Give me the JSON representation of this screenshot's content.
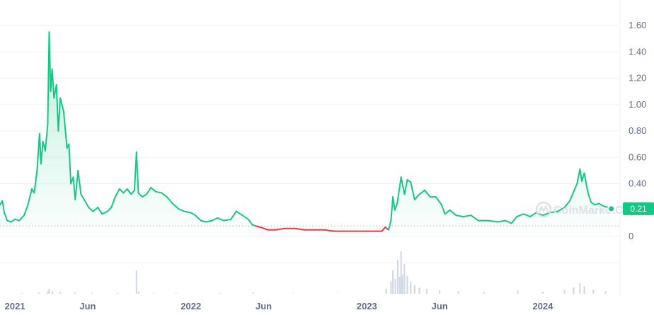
{
  "watermark": "CoinMarketCap",
  "colors": {
    "up": "#16c784",
    "down": "#ea3943",
    "volume": "#cfd6e4",
    "grid": "#eff2f5",
    "baseline": "#a6b0c3"
  },
  "chart_data": {
    "type": "line",
    "title": "",
    "xlabel": "",
    "ylabel": "",
    "y_ticks": [
      "1.60",
      "1.40",
      "1.20",
      "1.00",
      "0.80",
      "0.60",
      "0.40",
      "0.21",
      "0"
    ],
    "y_tick_values": [
      1.6,
      1.4,
      1.2,
      1.0,
      0.8,
      0.6,
      0.4,
      0.0
    ],
    "ylim": [
      0,
      1.6
    ],
    "x_ticks": [
      "2021",
      "Jun",
      "2022",
      "Jun",
      "2023",
      "Jun",
      "2024"
    ],
    "x_tick_dates": [
      "2021-01-01",
      "2021-06-01",
      "2022-01-01",
      "2022-06-01",
      "2023-01-01",
      "2023-06-01",
      "2024-01-01"
    ],
    "x_range": [
      "2020-12-01",
      "2024-06-15"
    ],
    "current_price": "0.21",
    "reference_price": 0.08,
    "grid": true,
    "series": [
      {
        "type": "price",
        "points": [
          [
            "2020-12-01",
            0.24
          ],
          [
            "2020-12-06",
            0.27
          ],
          [
            "2020-12-10",
            0.18
          ],
          [
            "2020-12-16",
            0.12
          ],
          [
            "2020-12-24",
            0.11
          ],
          [
            "2021-01-01",
            0.13
          ],
          [
            "2021-01-10",
            0.12
          ],
          [
            "2021-01-20",
            0.16
          ],
          [
            "2021-01-28",
            0.24
          ],
          [
            "2021-02-05",
            0.36
          ],
          [
            "2021-02-10",
            0.33
          ],
          [
            "2021-02-16",
            0.5
          ],
          [
            "2021-02-21",
            0.78
          ],
          [
            "2021-02-24",
            0.55
          ],
          [
            "2021-02-28",
            0.72
          ],
          [
            "2021-03-05",
            0.65
          ],
          [
            "2021-03-10",
            0.85
          ],
          [
            "2021-03-13",
            1.55
          ],
          [
            "2021-03-16",
            1.1
          ],
          [
            "2021-03-19",
            1.27
          ],
          [
            "2021-03-23",
            1.05
          ],
          [
            "2021-03-28",
            1.15
          ],
          [
            "2021-04-01",
            0.8
          ],
          [
            "2021-04-05",
            1.05
          ],
          [
            "2021-04-12",
            0.95
          ],
          [
            "2021-04-19",
            0.67
          ],
          [
            "2021-04-23",
            0.7
          ],
          [
            "2021-04-27",
            0.4
          ],
          [
            "2021-05-02",
            0.45
          ],
          [
            "2021-05-06",
            0.28
          ],
          [
            "2021-05-12",
            0.5
          ],
          [
            "2021-05-18",
            0.32
          ],
          [
            "2021-05-26",
            0.27
          ],
          [
            "2021-06-03",
            0.22
          ],
          [
            "2021-06-12",
            0.19
          ],
          [
            "2021-06-22",
            0.22
          ],
          [
            "2021-07-01",
            0.17
          ],
          [
            "2021-07-12",
            0.19
          ],
          [
            "2021-07-20",
            0.22
          ],
          [
            "2021-07-28",
            0.3
          ],
          [
            "2021-08-06",
            0.36
          ],
          [
            "2021-08-14",
            0.33
          ],
          [
            "2021-08-22",
            0.36
          ],
          [
            "2021-08-30",
            0.32
          ],
          [
            "2021-09-06",
            0.35
          ],
          [
            "2021-09-10",
            0.64
          ],
          [
            "2021-09-14",
            0.33
          ],
          [
            "2021-09-22",
            0.3
          ],
          [
            "2021-10-01",
            0.32
          ],
          [
            "2021-10-10",
            0.37
          ],
          [
            "2021-10-20",
            0.34
          ],
          [
            "2021-11-01",
            0.33
          ],
          [
            "2021-11-12",
            0.3
          ],
          [
            "2021-11-24",
            0.25
          ],
          [
            "2021-12-06",
            0.21
          ],
          [
            "2021-12-18",
            0.19
          ],
          [
            "2022-01-01",
            0.18
          ],
          [
            "2022-01-10",
            0.16
          ],
          [
            "2022-01-22",
            0.12
          ],
          [
            "2022-02-01",
            0.11
          ],
          [
            "2022-02-14",
            0.12
          ],
          [
            "2022-02-25",
            0.14
          ],
          [
            "2022-03-10",
            0.12
          ],
          [
            "2022-03-25",
            0.13
          ],
          [
            "2022-04-05",
            0.19
          ],
          [
            "2022-04-18",
            0.16
          ],
          [
            "2022-04-30",
            0.13
          ],
          [
            "2022-05-08",
            0.09
          ],
          [
            "2022-05-15",
            0.08
          ],
          [
            "2022-05-25",
            0.07
          ],
          [
            "2022-06-10",
            0.05
          ],
          [
            "2022-06-25",
            0.05
          ],
          [
            "2022-07-15",
            0.06
          ],
          [
            "2022-08-05",
            0.06
          ],
          [
            "2022-08-25",
            0.05
          ],
          [
            "2022-09-15",
            0.05
          ],
          [
            "2022-10-05",
            0.05
          ],
          [
            "2022-10-25",
            0.04
          ],
          [
            "2022-11-15",
            0.04
          ],
          [
            "2022-12-05",
            0.04
          ],
          [
            "2022-12-25",
            0.04
          ],
          [
            "2023-01-15",
            0.04
          ],
          [
            "2023-02-01",
            0.04
          ],
          [
            "2023-02-08",
            0.07
          ],
          [
            "2023-02-15",
            0.05
          ],
          [
            "2023-02-20",
            0.12
          ],
          [
            "2023-02-24",
            0.3
          ],
          [
            "2023-02-28",
            0.2
          ],
          [
            "2023-03-05",
            0.25
          ],
          [
            "2023-03-13",
            0.45
          ],
          [
            "2023-03-20",
            0.32
          ],
          [
            "2023-03-26",
            0.43
          ],
          [
            "2023-04-02",
            0.41
          ],
          [
            "2023-04-10",
            0.28
          ],
          [
            "2023-04-20",
            0.32
          ],
          [
            "2023-05-01",
            0.35
          ],
          [
            "2023-05-12",
            0.3
          ],
          [
            "2023-05-24",
            0.3
          ],
          [
            "2023-06-05",
            0.24
          ],
          [
            "2023-06-12",
            0.17
          ],
          [
            "2023-06-22",
            0.2
          ],
          [
            "2023-07-05",
            0.16
          ],
          [
            "2023-07-20",
            0.15
          ],
          [
            "2023-08-05",
            0.16
          ],
          [
            "2023-08-20",
            0.12
          ],
          [
            "2023-09-10",
            0.12
          ],
          [
            "2023-09-30",
            0.11
          ],
          [
            "2023-10-15",
            0.12
          ],
          [
            "2023-10-28",
            0.1
          ],
          [
            "2023-11-08",
            0.15
          ],
          [
            "2023-11-22",
            0.17
          ],
          [
            "2023-12-06",
            0.15
          ],
          [
            "2023-12-18",
            0.18
          ],
          [
            "2024-01-01",
            0.16
          ],
          [
            "2024-01-15",
            0.18
          ],
          [
            "2024-02-01",
            0.19
          ],
          [
            "2024-02-15",
            0.22
          ],
          [
            "2024-02-26",
            0.27
          ],
          [
            "2024-03-05",
            0.34
          ],
          [
            "2024-03-12",
            0.4
          ],
          [
            "2024-03-18",
            0.51
          ],
          [
            "2024-03-22",
            0.42
          ],
          [
            "2024-03-27",
            0.48
          ],
          [
            "2024-04-03",
            0.34
          ],
          [
            "2024-04-10",
            0.26
          ],
          [
            "2024-04-18",
            0.24
          ],
          [
            "2024-04-26",
            0.25
          ],
          [
            "2024-05-06",
            0.23
          ],
          [
            "2024-05-15",
            0.22
          ],
          [
            "2024-05-22",
            0.21
          ]
        ]
      }
    ],
    "volume": {
      "ymax": 1.0,
      "points": [
        [
          "2021-01-15",
          0.02
        ],
        [
          "2021-02-20",
          0.03
        ],
        [
          "2021-03-10",
          0.05
        ],
        [
          "2021-03-13",
          0.12
        ],
        [
          "2021-03-20",
          0.06
        ],
        [
          "2021-04-05",
          0.04
        ],
        [
          "2021-05-05",
          0.03
        ],
        [
          "2021-06-10",
          0.02
        ],
        [
          "2021-08-01",
          0.02
        ],
        [
          "2021-09-10",
          0.55
        ],
        [
          "2021-09-15",
          0.05
        ],
        [
          "2021-10-15",
          0.02
        ],
        [
          "2021-12-01",
          0.02
        ],
        [
          "2022-03-01",
          0.02
        ],
        [
          "2022-05-10",
          0.03
        ],
        [
          "2022-08-01",
          0.01
        ],
        [
          "2022-11-01",
          0.01
        ],
        [
          "2023-02-10",
          0.12
        ],
        [
          "2023-02-20",
          0.3
        ],
        [
          "2023-02-24",
          0.55
        ],
        [
          "2023-03-01",
          0.35
        ],
        [
          "2023-03-06",
          0.8
        ],
        [
          "2023-03-10",
          0.4
        ],
        [
          "2023-03-13",
          1.0
        ],
        [
          "2023-03-16",
          0.45
        ],
        [
          "2023-03-20",
          0.7
        ],
        [
          "2023-03-26",
          0.42
        ],
        [
          "2023-04-02",
          0.28
        ],
        [
          "2023-04-10",
          0.2
        ],
        [
          "2023-04-20",
          0.15
        ],
        [
          "2023-05-05",
          0.12
        ],
        [
          "2023-06-01",
          0.08
        ],
        [
          "2023-07-10",
          0.06
        ],
        [
          "2023-09-01",
          0.04
        ],
        [
          "2023-11-10",
          0.07
        ],
        [
          "2024-01-01",
          0.05
        ],
        [
          "2024-02-15",
          0.09
        ],
        [
          "2024-03-05",
          0.15
        ],
        [
          "2024-03-18",
          0.25
        ],
        [
          "2024-03-27",
          0.18
        ],
        [
          "2024-04-15",
          0.1
        ],
        [
          "2024-05-10",
          0.06
        ]
      ]
    }
  }
}
